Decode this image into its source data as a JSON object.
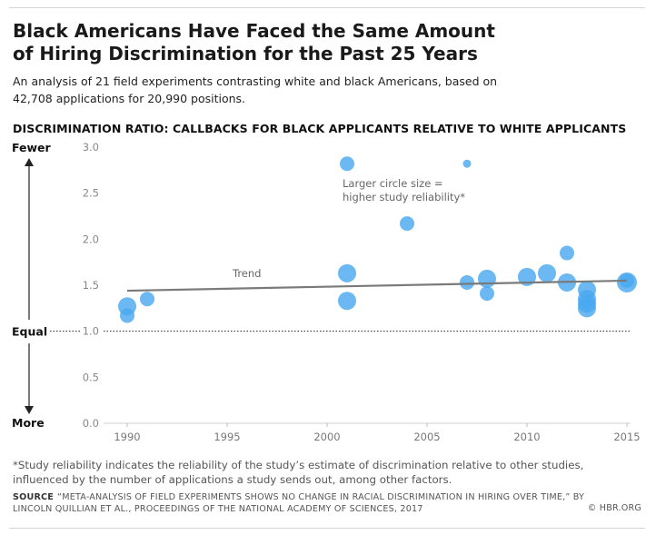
{
  "title": "Black Americans Have Faced the Same Amount of Hiring Discrimination for the Past 25 Years",
  "subtitle": "An analysis of 21 field experiments contrasting white and black Americans, based on 42,708 applications for 20,990 positions.",
  "chart_heading": "DISCRIMINATION RATIO: CALLBACKS FOR BLACK APPLICANTS RELATIVE TO WHITE APPLICANTS",
  "footnote": "*Study reliability indicates the reliability of the study’s estimate of discrimination relative to other studies, influenced by the number of applications a study sends out, among other factors.",
  "source_label": "SOURCE",
  "source_text": "“META-ANALYSIS OF FIELD EXPERIMENTS SHOWS NO CHANGE IN RACIAL DISCRIMINATION IN HIRING OVER TIME,” BY LINCOLN QUILLIAN ET AL., PROCEEDINGS OF THE NATIONAL ACADEMY OF SCIENCES, 2017",
  "credit": "© HBR.ORG",
  "colors": {
    "bubble": "#4aa8f0",
    "trend": "#7a7a7a",
    "axis_text": "#888888",
    "reference_line": "#222222"
  },
  "chart_data": {
    "type": "scatter",
    "title": "DISCRIMINATION RATIO: CALLBACKS FOR BLACK APPLICANTS RELATIVE TO WHITE APPLICANTS",
    "xlabel": "",
    "ylabel": "",
    "xlim": [
      1988,
      2015.5
    ],
    "ylim": [
      0,
      3.0
    ],
    "x_ticks": [
      1990,
      1995,
      2000,
      2005,
      2010,
      2015
    ],
    "y_ticks": [
      0.0,
      0.5,
      1.0,
      1.5,
      2.0,
      2.5,
      3.0
    ],
    "y_tick_labels": [
      "0.0",
      "0.5",
      "1.0",
      "1.5",
      "2.0",
      "2.5",
      "3.0"
    ],
    "grid": false,
    "side_labels": {
      "top": "Fewer",
      "middle": "Equal",
      "bottom": "More"
    },
    "reference_line": {
      "y": 1.0
    },
    "trend": {
      "label": "Trend",
      "start": [
        1990,
        1.44
      ],
      "end": [
        2015,
        1.55
      ]
    },
    "size_note": "Larger circle size = higher study reliability*",
    "size_note_lines": [
      "Larger circle size =",
      "higher study reliability*"
    ],
    "points": [
      {
        "x": 1990,
        "y": 1.27,
        "reliability": 3
      },
      {
        "x": 1990,
        "y": 1.17,
        "reliability": 2
      },
      {
        "x": 1991,
        "y": 1.35,
        "reliability": 2
      },
      {
        "x": 2001,
        "y": 2.82,
        "reliability": 2
      },
      {
        "x": 2001,
        "y": 1.63,
        "reliability": 3
      },
      {
        "x": 2001,
        "y": 1.33,
        "reliability": 3
      },
      {
        "x": 2004,
        "y": 2.17,
        "reliability": 2
      },
      {
        "x": 2007,
        "y": 2.82,
        "reliability": 1
      },
      {
        "x": 2007,
        "y": 1.53,
        "reliability": 2
      },
      {
        "x": 2008,
        "y": 1.57,
        "reliability": 3
      },
      {
        "x": 2008,
        "y": 1.41,
        "reliability": 2
      },
      {
        "x": 2010,
        "y": 1.59,
        "reliability": 3
      },
      {
        "x": 2011,
        "y": 1.63,
        "reliability": 3
      },
      {
        "x": 2012,
        "y": 1.85,
        "reliability": 2
      },
      {
        "x": 2012,
        "y": 1.53,
        "reliability": 3
      },
      {
        "x": 2013,
        "y": 1.45,
        "reliability": 3
      },
      {
        "x": 2013,
        "y": 1.35,
        "reliability": 3
      },
      {
        "x": 2013,
        "y": 1.3,
        "reliability": 3
      },
      {
        "x": 2013,
        "y": 1.25,
        "reliability": 3
      },
      {
        "x": 2015,
        "y": 1.53,
        "reliability": 4
      },
      {
        "x": 2015,
        "y": 1.55,
        "reliability": 2
      }
    ]
  }
}
